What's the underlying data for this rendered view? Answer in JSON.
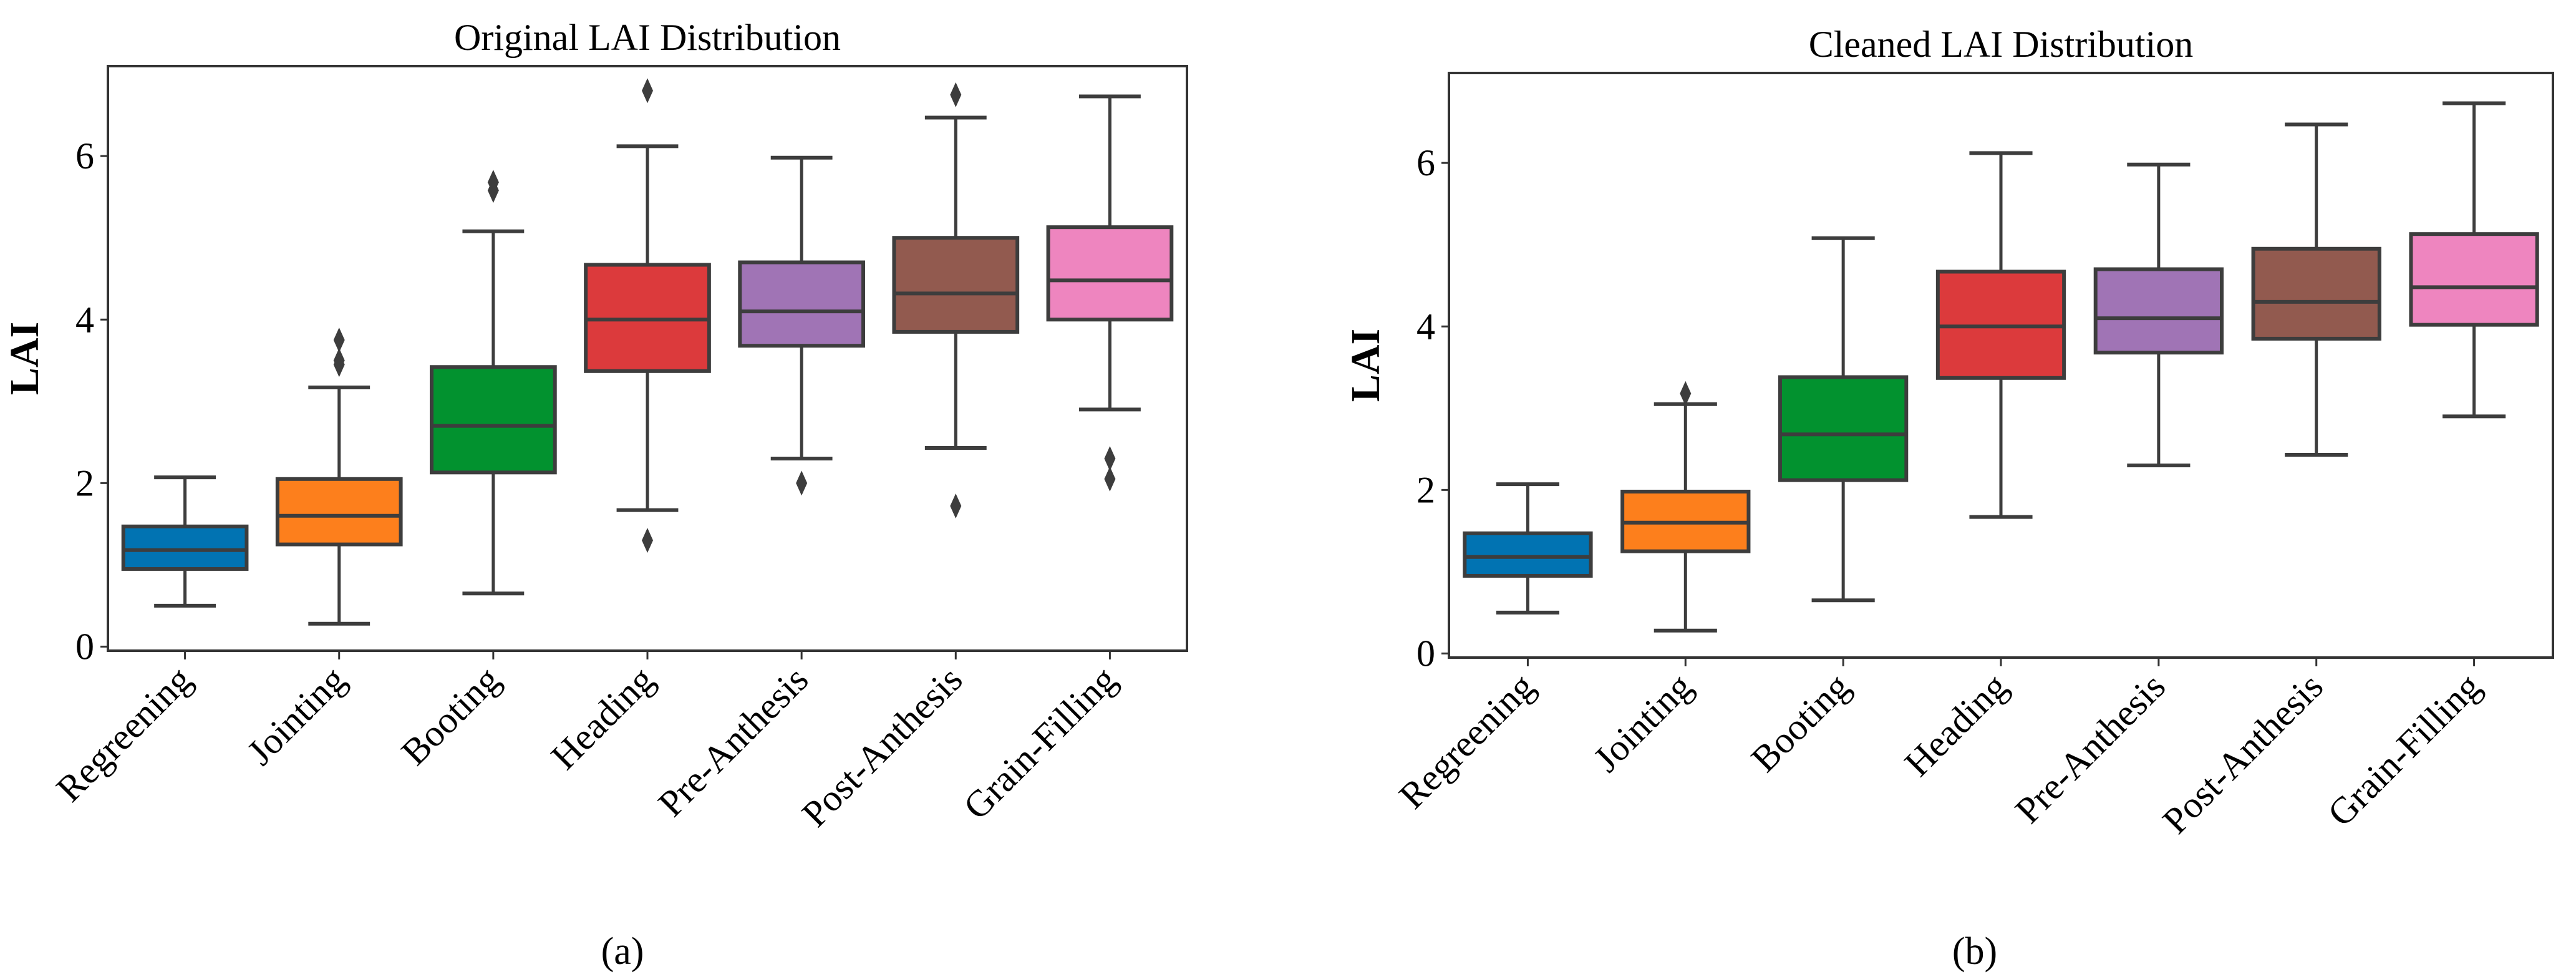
{
  "chart_data": [
    {
      "type": "box",
      "panel_label": "(a)",
      "title": "Original LAI Distribution",
      "xlabel": "",
      "ylabel": "LAI",
      "ylim": [
        -0.05,
        7.1
      ],
      "yticks": [
        0,
        2,
        4,
        6
      ],
      "grid": false,
      "categories": [
        "Regreening",
        "Jointing",
        "Booting",
        "Heading",
        "Pre-Anthesis",
        "Post-Anthesis",
        "Grain-Filling"
      ],
      "colors": [
        "#0173b2",
        "#fd7f1c",
        "#02922f",
        "#dc3a3c",
        "#a074b5",
        "#925a4f",
        "#ee85bf"
      ],
      "boxes": [
        {
          "whislo": 0.5,
          "q1": 0.95,
          "med": 1.18,
          "q3": 1.47,
          "whishi": 2.07,
          "fliers": []
        },
        {
          "whislo": 0.28,
          "q1": 1.25,
          "med": 1.6,
          "q3": 2.05,
          "whishi": 3.17,
          "fliers": [
            3.45,
            3.5,
            3.75
          ]
        },
        {
          "whislo": 0.65,
          "q1": 2.13,
          "med": 2.7,
          "q3": 3.42,
          "whishi": 5.08,
          "fliers": [
            5.58,
            5.68
          ]
        },
        {
          "whislo": 1.67,
          "q1": 3.37,
          "med": 4.0,
          "q3": 4.67,
          "whishi": 6.12,
          "fliers": [
            1.3,
            6.8
          ]
        },
        {
          "whislo": 2.3,
          "q1": 3.68,
          "med": 4.1,
          "q3": 4.7,
          "whishi": 5.98,
          "fliers": [
            2.0
          ]
        },
        {
          "whislo": 2.43,
          "q1": 3.85,
          "med": 4.32,
          "q3": 5.0,
          "whishi": 6.47,
          "fliers": [
            1.72,
            6.75
          ]
        },
        {
          "whislo": 2.9,
          "q1": 4.0,
          "med": 4.48,
          "q3": 5.13,
          "whishi": 6.73,
          "fliers": [
            2.05,
            2.3
          ]
        }
      ]
    },
    {
      "type": "box",
      "panel_label": "(b)",
      "title": "Cleaned LAI Distribution",
      "xlabel": "",
      "ylabel": "LAI",
      "ylim": [
        -0.05,
        7.1
      ],
      "yticks": [
        0,
        2,
        4,
        6
      ],
      "grid": false,
      "categories": [
        "Regreening",
        "Jointing",
        "Booting",
        "Heading",
        "Pre-Anthesis",
        "Post-Anthesis",
        "Grain-Filling"
      ],
      "colors": [
        "#0173b2",
        "#fd7f1c",
        "#02922f",
        "#dc3a3c",
        "#a074b5",
        "#925a4f",
        "#ee85bf"
      ],
      "boxes": [
        {
          "whislo": 0.5,
          "q1": 0.95,
          "med": 1.18,
          "q3": 1.47,
          "whishi": 2.07,
          "fliers": []
        },
        {
          "whislo": 0.28,
          "q1": 1.25,
          "med": 1.6,
          "q3": 1.98,
          "whishi": 3.05,
          "fliers": [
            3.18
          ]
        },
        {
          "whislo": 0.65,
          "q1": 2.12,
          "med": 2.68,
          "q3": 3.38,
          "whishi": 5.08,
          "fliers": []
        },
        {
          "whislo": 1.67,
          "q1": 3.37,
          "med": 4.0,
          "q3": 4.67,
          "whishi": 6.12,
          "fliers": []
        },
        {
          "whislo": 2.3,
          "q1": 3.68,
          "med": 4.1,
          "q3": 4.7,
          "whishi": 5.98,
          "fliers": []
        },
        {
          "whislo": 2.43,
          "q1": 3.85,
          "med": 4.3,
          "q3": 4.95,
          "whishi": 6.47,
          "fliers": []
        },
        {
          "whislo": 2.9,
          "q1": 4.02,
          "med": 4.48,
          "q3": 5.13,
          "whishi": 6.73,
          "fliers": []
        }
      ]
    }
  ]
}
